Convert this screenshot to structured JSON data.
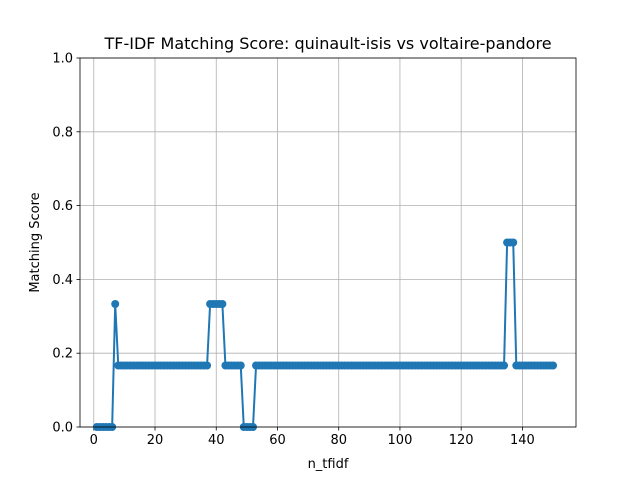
{
  "chart_data": {
    "type": "line",
    "title": "TF-IDF Matching Score: quinault-isis vs voltaire-pandore",
    "xlabel": "n_tfidf",
    "ylabel": "Matching Score",
    "xlim": [
      -4.5,
      157.5
    ],
    "ylim": [
      0,
      1.0
    ],
    "xticks": [
      0,
      20,
      40,
      60,
      80,
      100,
      120,
      140
    ],
    "yticks": [
      0.0,
      0.2,
      0.4,
      0.6,
      0.8,
      1.0
    ],
    "xtick_labels": [
      "0",
      "20",
      "40",
      "60",
      "80",
      "100",
      "120",
      "140"
    ],
    "ytick_labels": [
      "0.0",
      "0.2",
      "0.4",
      "0.6",
      "0.8",
      "1.0"
    ],
    "grid": true,
    "color": "#1f77b4",
    "marker": "circle",
    "x": [
      1,
      2,
      3,
      4,
      5,
      6,
      7,
      8,
      9,
      10,
      11,
      12,
      13,
      14,
      15,
      16,
      17,
      18,
      19,
      20,
      21,
      22,
      23,
      24,
      25,
      26,
      27,
      28,
      29,
      30,
      31,
      32,
      33,
      34,
      35,
      36,
      37,
      38,
      39,
      40,
      41,
      42,
      43,
      44,
      45,
      46,
      47,
      48,
      49,
      50,
      51,
      52,
      53,
      54,
      55,
      56,
      57,
      58,
      59,
      60,
      61,
      62,
      63,
      64,
      65,
      66,
      67,
      68,
      69,
      70,
      71,
      72,
      73,
      74,
      75,
      76,
      77,
      78,
      79,
      80,
      81,
      82,
      83,
      84,
      85,
      86,
      87,
      88,
      89,
      90,
      91,
      92,
      93,
      94,
      95,
      96,
      97,
      98,
      99,
      100,
      101,
      102,
      103,
      104,
      105,
      106,
      107,
      108,
      109,
      110,
      111,
      112,
      113,
      114,
      115,
      116,
      117,
      118,
      119,
      120,
      121,
      122,
      123,
      124,
      125,
      126,
      127,
      128,
      129,
      130,
      131,
      132,
      133,
      134,
      135,
      136,
      137,
      138,
      139,
      140,
      141,
      142,
      143,
      144,
      145,
      146,
      147,
      148,
      149,
      150
    ],
    "y": [
      0,
      0,
      0,
      0,
      0,
      0,
      0.3333,
      0.1667,
      0.1667,
      0.1667,
      0.1667,
      0.1667,
      0.1667,
      0.1667,
      0.1667,
      0.1667,
      0.1667,
      0.1667,
      0.1667,
      0.1667,
      0.1667,
      0.1667,
      0.1667,
      0.1667,
      0.1667,
      0.1667,
      0.1667,
      0.1667,
      0.1667,
      0.1667,
      0.1667,
      0.1667,
      0.1667,
      0.1667,
      0.1667,
      0.1667,
      0.1667,
      0.3333,
      0.3333,
      0.3333,
      0.3333,
      0.3333,
      0.1667,
      0.1667,
      0.1667,
      0.1667,
      0.1667,
      0.1667,
      0,
      0,
      0,
      0,
      0.1667,
      0.1667,
      0.1667,
      0.1667,
      0.1667,
      0.1667,
      0.1667,
      0.1667,
      0.1667,
      0.1667,
      0.1667,
      0.1667,
      0.1667,
      0.1667,
      0.1667,
      0.1667,
      0.1667,
      0.1667,
      0.1667,
      0.1667,
      0.1667,
      0.1667,
      0.1667,
      0.1667,
      0.1667,
      0.1667,
      0.1667,
      0.1667,
      0.1667,
      0.1667,
      0.1667,
      0.1667,
      0.1667,
      0.1667,
      0.1667,
      0.1667,
      0.1667,
      0.1667,
      0.1667,
      0.1667,
      0.1667,
      0.1667,
      0.1667,
      0.1667,
      0.1667,
      0.1667,
      0.1667,
      0.1667,
      0.1667,
      0.1667,
      0.1667,
      0.1667,
      0.1667,
      0.1667,
      0.1667,
      0.1667,
      0.1667,
      0.1667,
      0.1667,
      0.1667,
      0.1667,
      0.1667,
      0.1667,
      0.1667,
      0.1667,
      0.1667,
      0.1667,
      0.1667,
      0.1667,
      0.1667,
      0.1667,
      0.1667,
      0.1667,
      0.1667,
      0.1667,
      0.1667,
      0.1667,
      0.1667,
      0.1667,
      0.1667,
      0.1667,
      0.1667,
      0.5,
      0.5,
      0.5,
      0.1667,
      0.1667,
      0.1667,
      0.1667,
      0.1667,
      0.1667,
      0.1667,
      0.1667,
      0.1667,
      0.1667,
      0.1667,
      0.1667,
      0.1667
    ]
  }
}
